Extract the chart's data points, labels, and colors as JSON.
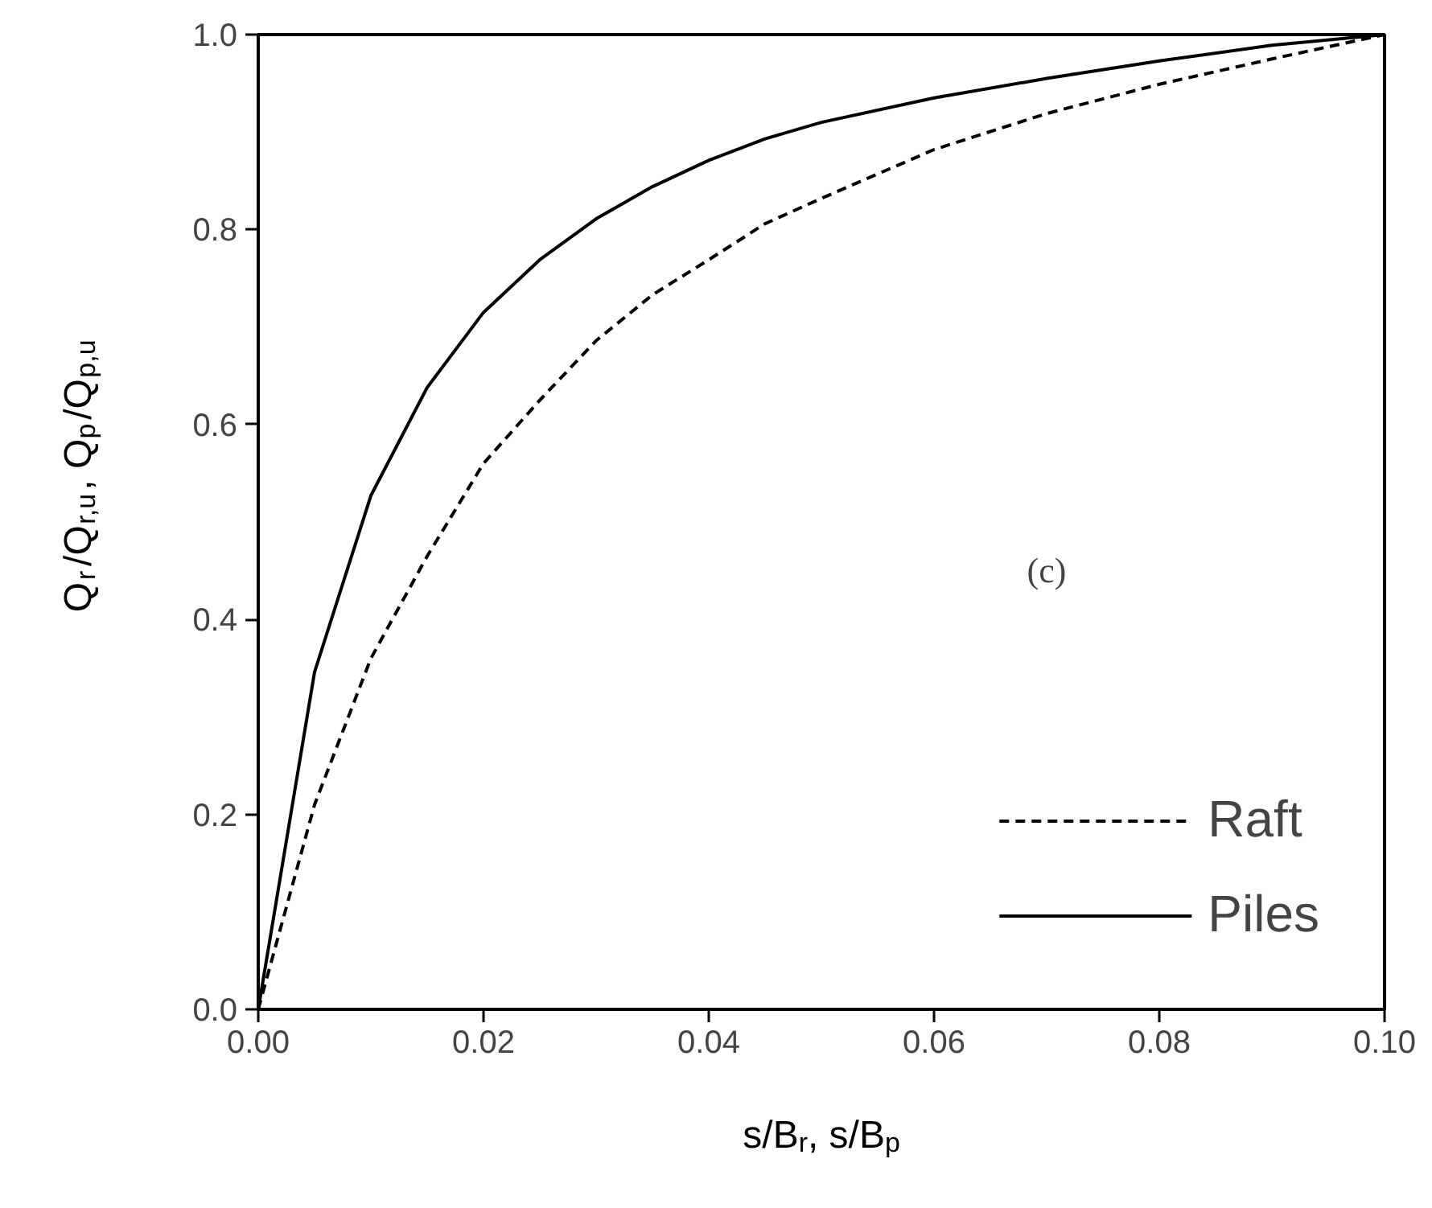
{
  "chart_data": {
    "type": "line",
    "xlabel": "s/B$_{r}$, s/B$_{p}$",
    "ylabel": "Q$_{r}$/Q$_{r,u}$, Q$_{p}$/Q$_{p,u}$",
    "annotations": [
      "(c)"
    ],
    "x": [
      0,
      0.005,
      0.01,
      0.015,
      0.02,
      0.025,
      0.03,
      0.035,
      0.04,
      0.045,
      0.05,
      0.06,
      0.07,
      0.08,
      0.09,
      0.1
    ],
    "series": [
      {
        "name": "Raft",
        "color": "#000000",
        "line_style": "dashed",
        "values": [
          0,
          0.21,
          0.36,
          0.465,
          0.56,
          0.625,
          0.686,
          0.733,
          0.769,
          0.806,
          0.832,
          0.882,
          0.919,
          0.949,
          0.975,
          1.0
        ]
      },
      {
        "name": "Piles",
        "color": "#000000",
        "line_style": "solid",
        "values": [
          0,
          0.346,
          0.527,
          0.638,
          0.715,
          0.769,
          0.811,
          0.844,
          0.871,
          0.893,
          0.91,
          0.935,
          0.955,
          0.973,
          0.989,
          1.0
        ]
      }
    ],
    "xlim": [
      0,
      0.1
    ],
    "ylim": [
      0,
      1.0
    ],
    "xticks": [
      {
        "value": 0,
        "label": "0.00"
      },
      {
        "value": 0.02,
        "label": "0.02"
      },
      {
        "value": 0.04,
        "label": "0.04"
      },
      {
        "value": 0.06,
        "label": "0.06"
      },
      {
        "value": 0.08,
        "label": "0.08"
      },
      {
        "value": 0.1,
        "label": "0.10"
      }
    ],
    "yticks": [
      {
        "value": 0,
        "label": "0.0"
      },
      {
        "value": 0.2,
        "label": "0.2"
      },
      {
        "value": 0.4,
        "label": "0.4"
      },
      {
        "value": 0.6,
        "label": "0.6"
      },
      {
        "value": 0.8,
        "label": "0.8"
      },
      {
        "value": 1.0,
        "label": "1.0"
      }
    ],
    "grid": false,
    "legend": "bottom right",
    "marker": "none"
  }
}
